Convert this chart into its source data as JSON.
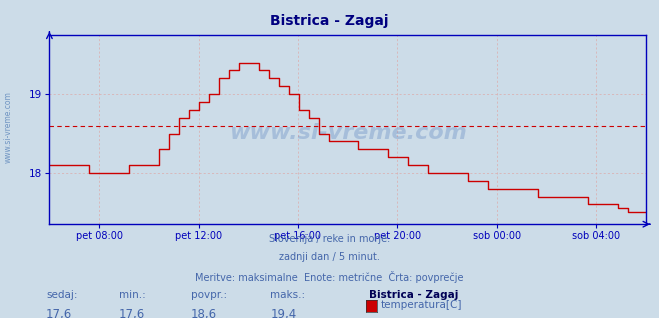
{
  "title": "Bistrica - Zagaj",
  "bg_color": "#ccdce8",
  "plot_bg_color": "#ccdce8",
  "line_color": "#cc0000",
  "axis_color": "#0000bb",
  "grid_color": "#ddaaaa",
  "avg_line_color": "#cc0000",
  "text_color": "#4466aa",
  "title_color": "#000080",
  "ylim": [
    17.35,
    19.75
  ],
  "yticks": [
    18.0,
    19.0
  ],
  "avg_value": 18.6,
  "min_value": 17.6,
  "max_value": 19.4,
  "current_value": 17.6,
  "povpr_value": 18.6,
  "subtitle_lines": [
    "Slovenija / reke in morje.",
    "zadnji dan / 5 minut.",
    "Meritve: maksimalne  Enote: metrične  Črta: povprečje"
  ],
  "legend_station": "Bistrica - Zagaj",
  "legend_label": "temperatura[C]",
  "bottom_labels": [
    "sedaj:",
    "min.:",
    "povpr.:",
    "maks.:"
  ],
  "bottom_values": [
    "17,6",
    "17,6",
    "18,6",
    "19,4"
  ],
  "xtick_labels": [
    "pet 08:00",
    "pet 12:00",
    "pet 16:00",
    "pet 20:00",
    "sob 00:00",
    "sob 04:00"
  ],
  "xtick_positions": [
    0.0833,
    0.25,
    0.4167,
    0.5833,
    0.75,
    0.9167
  ],
  "watermark": "www.si-vreme.com",
  "left_watermark": "www.si-vreme.com"
}
